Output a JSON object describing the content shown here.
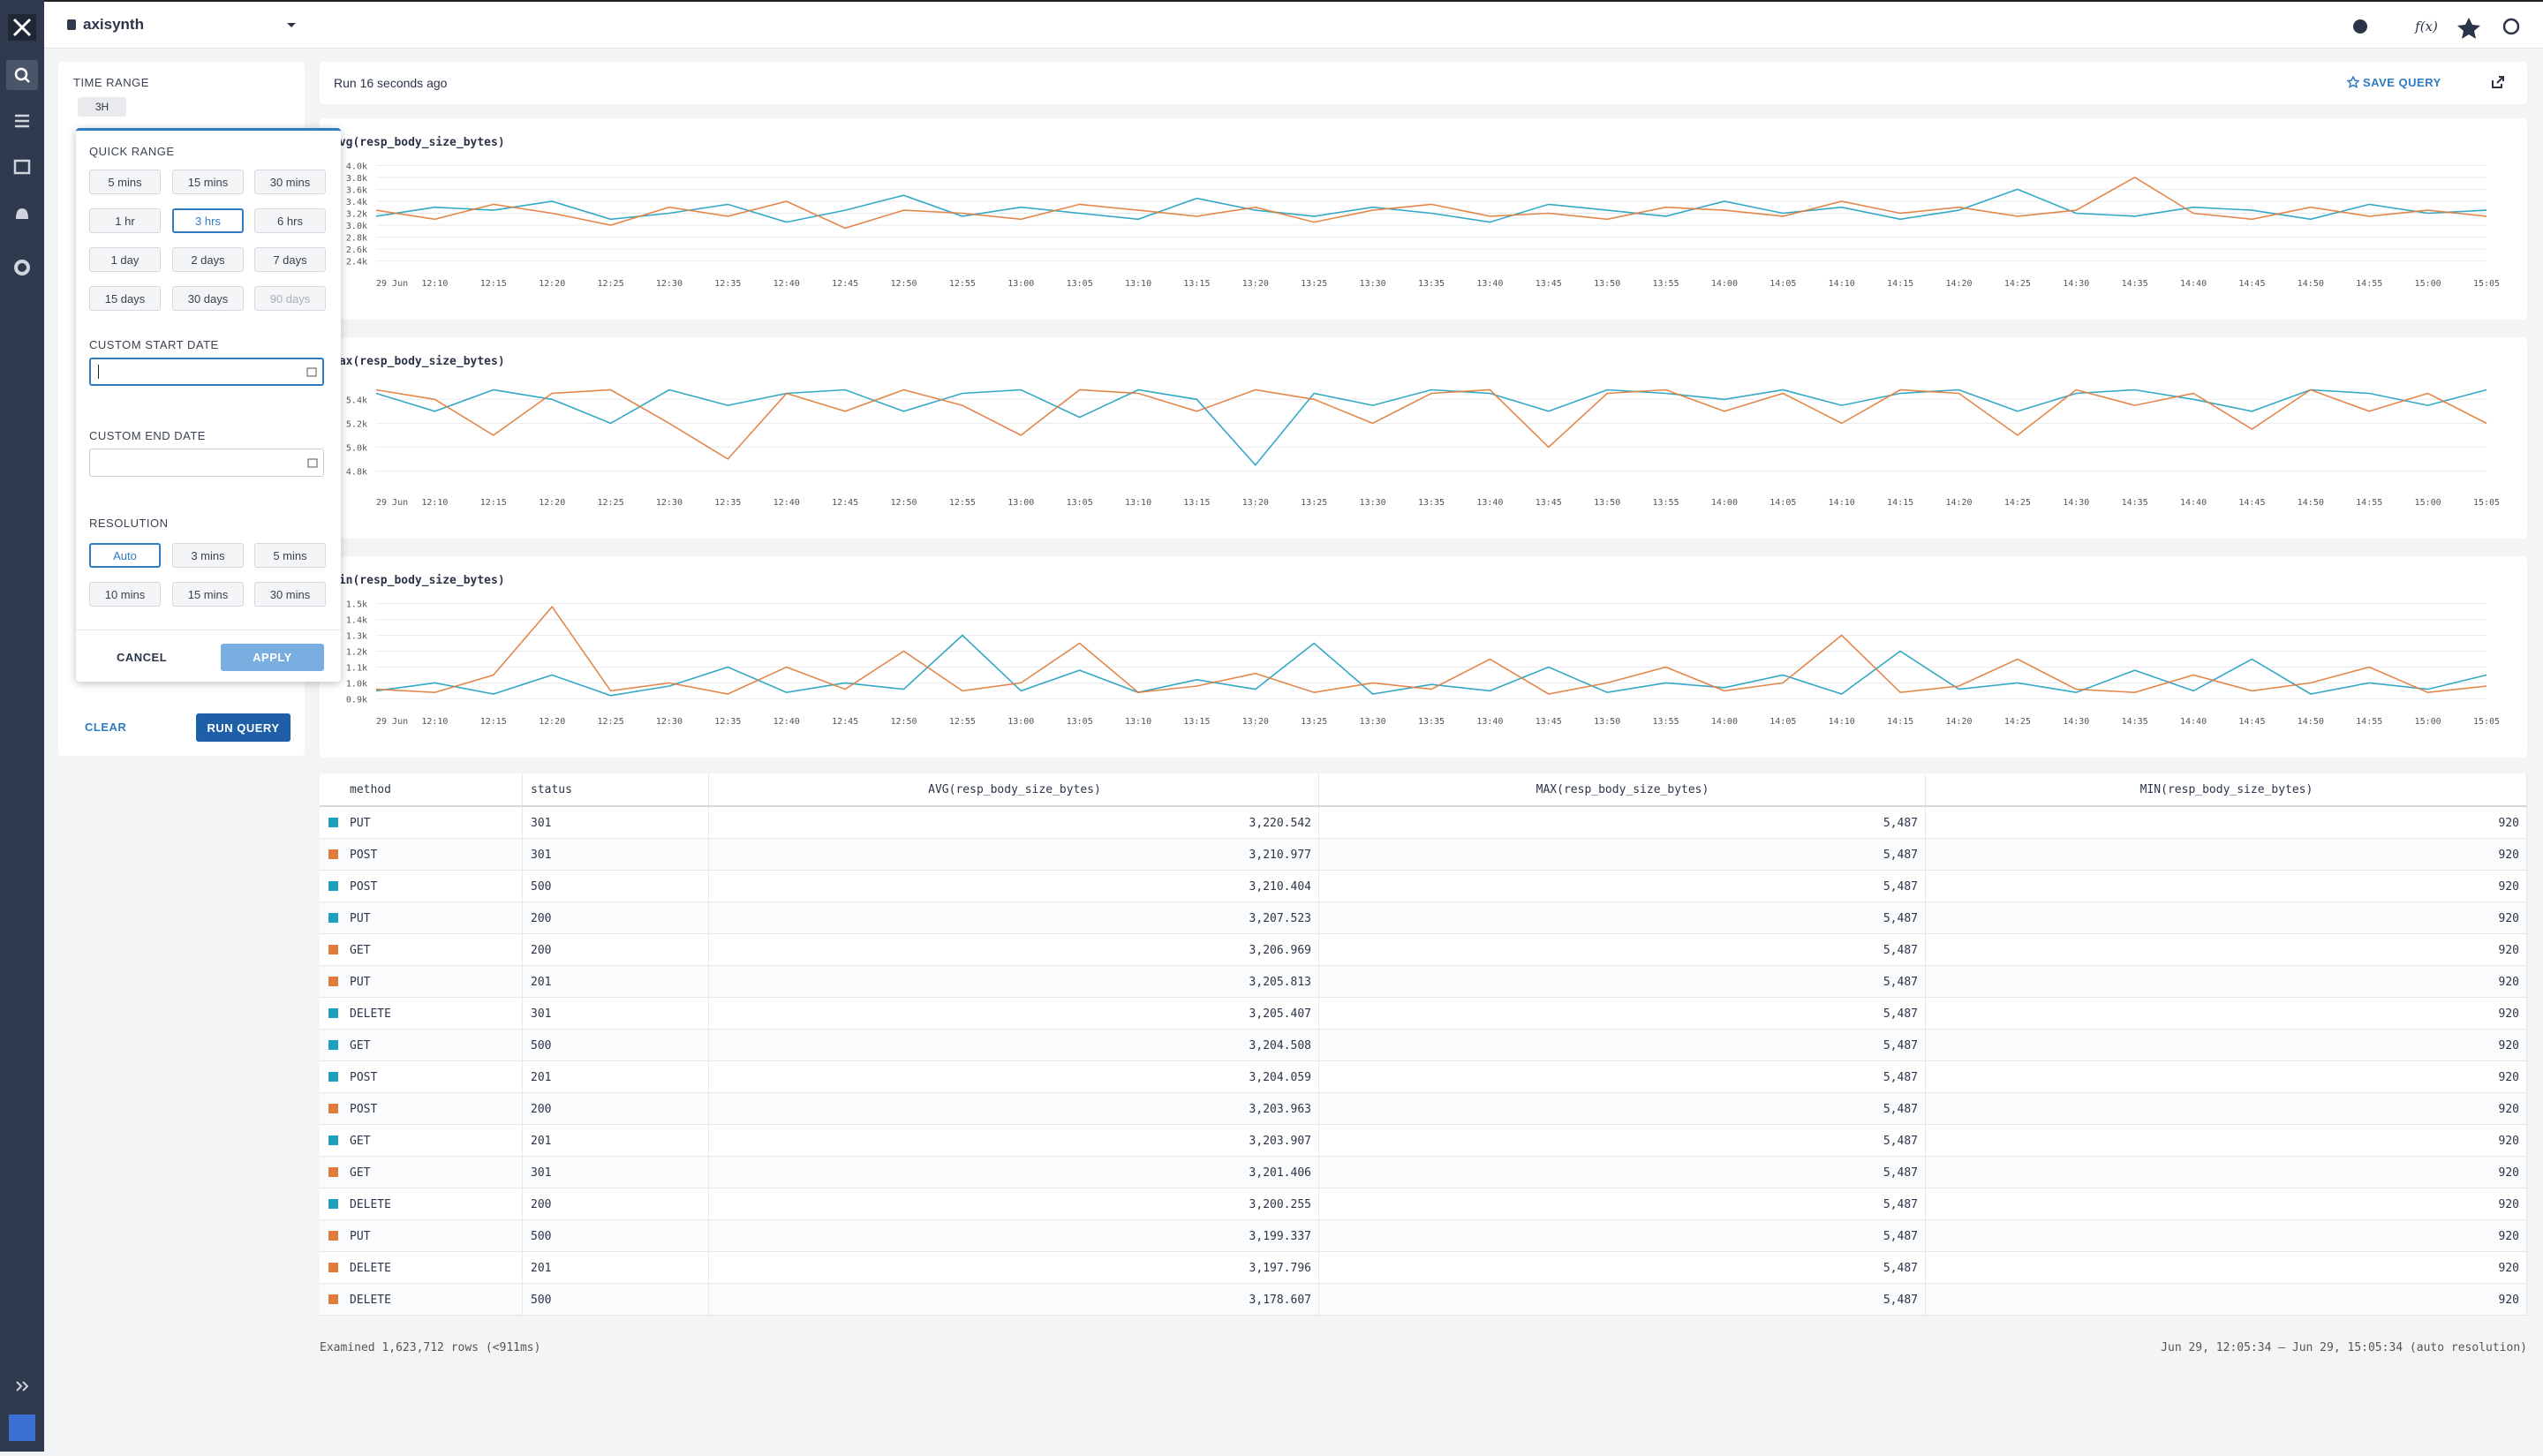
{
  "header": {
    "app": "axisynth"
  },
  "sidebar": {
    "time_range_label": "TIME RANGE",
    "time_range_value": "3H",
    "clear": "CLEAR",
    "run_query": "RUN QUERY"
  },
  "time_picker": {
    "quick_range_label": "QUICK RANGE",
    "quick_ranges": [
      "5 mins",
      "15 mins",
      "30 mins",
      "1 hr",
      "3 hrs",
      "6 hrs",
      "1 day",
      "2 days",
      "7 days",
      "15 days",
      "30 days",
      "90 days"
    ],
    "quick_selected": 4,
    "quick_disabled": 11,
    "custom_start_label": "CUSTOM START DATE",
    "custom_end_label": "CUSTOM END DATE",
    "resolution_label": "RESOLUTION",
    "resolutions": [
      "Auto",
      "3 mins",
      "5 mins",
      "10 mins",
      "15 mins",
      "30 mins"
    ],
    "resolution_selected": 0,
    "cancel": "CANCEL",
    "apply": "APPLY"
  },
  "query_bar": {
    "status": "Run 16 seconds ago",
    "save": "SAVE QUERY"
  },
  "chart_data": [
    {
      "type": "line",
      "title": "avg(resp_body_size_bytes)",
      "x": [
        "29 Jun",
        "12:10",
        "12:15",
        "12:20",
        "12:25",
        "12:30",
        "12:35",
        "12:40",
        "12:45",
        "12:50",
        "12:55",
        "13:00",
        "13:05",
        "13:10",
        "13:15",
        "13:20",
        "13:25",
        "13:30",
        "13:35",
        "13:40",
        "13:45",
        "13:50",
        "13:55",
        "14:00",
        "14:05",
        "14:10",
        "14:15",
        "14:20",
        "14:25",
        "14:30",
        "14:35",
        "14:40",
        "14:45",
        "14:50",
        "14:55",
        "15:00",
        "15:05"
      ],
      "ylim": [
        2350,
        4050
      ],
      "yticks": [
        {
          "value": 2400,
          "label": "2.4k"
        },
        {
          "value": 2600,
          "label": "2.6k"
        },
        {
          "value": 2800,
          "label": "2.8k"
        },
        {
          "value": 3000,
          "label": "3.0k"
        },
        {
          "value": 3200,
          "label": "3.2k"
        },
        {
          "value": 3400,
          "label": "3.4k"
        },
        {
          "value": 3600,
          "label": "3.6k"
        },
        {
          "value": 3800,
          "label": "3.8k"
        },
        {
          "value": 4000,
          "label": "4.0k"
        }
      ],
      "grid": true,
      "series": [
        {
          "color": "#1f9fc0",
          "values": [
            3150,
            3300,
            3250,
            3400,
            3100,
            3200,
            3350,
            3050,
            3250,
            3500,
            3150,
            3300,
            3200,
            3100,
            3450,
            3250,
            3150,
            3300,
            3200,
            3050,
            3350,
            3250,
            3150,
            3400,
            3200,
            3300,
            3100,
            3250,
            3600,
            3200,
            3150,
            3300,
            3250,
            3100,
            3350,
            3200,
            3250
          ]
        },
        {
          "color": "#e07b39",
          "values": [
            3250,
            3100,
            3350,
            3200,
            3000,
            3300,
            3150,
            3400,
            2950,
            3250,
            3200,
            3100,
            3350,
            3250,
            3150,
            3300,
            3050,
            3250,
            3350,
            3150,
            3200,
            3100,
            3300,
            3250,
            3150,
            3400,
            3200,
            3300,
            3150,
            3250,
            3800,
            3200,
            3100,
            3300,
            3150,
            3250,
            3150
          ]
        }
      ]
    },
    {
      "type": "line",
      "title": "max(resp_body_size_bytes)",
      "x": [
        "29 Jun",
        "12:10",
        "12:15",
        "12:20",
        "12:25",
        "12:30",
        "12:35",
        "12:40",
        "12:45",
        "12:50",
        "12:55",
        "13:00",
        "13:05",
        "13:10",
        "13:15",
        "13:20",
        "13:25",
        "13:30",
        "13:35",
        "13:40",
        "13:45",
        "13:50",
        "13:55",
        "14:00",
        "14:05",
        "14:10",
        "14:15",
        "14:20",
        "14:25",
        "14:30",
        "14:35",
        "14:40",
        "14:45",
        "14:50",
        "14:55",
        "15:00",
        "15:05"
      ],
      "ylim": [
        4700,
        5550
      ],
      "yticks": [
        {
          "value": 4800,
          "label": "4.8k"
        },
        {
          "value": 5000,
          "label": "5.0k"
        },
        {
          "value": 5200,
          "label": "5.2k"
        },
        {
          "value": 5400,
          "label": "5.4k"
        }
      ],
      "grid": true,
      "series": [
        {
          "color": "#1f9fc0",
          "values": [
            5450,
            5300,
            5480,
            5400,
            5200,
            5480,
            5350,
            5450,
            5480,
            5300,
            5450,
            5480,
            5250,
            5480,
            5400,
            4850,
            5450,
            5350,
            5480,
            5450,
            5300,
            5480,
            5450,
            5400,
            5480,
            5350,
            5450,
            5480,
            5300,
            5450,
            5480,
            5400,
            5300,
            5480,
            5450,
            5350,
            5480
          ]
        },
        {
          "color": "#e07b39",
          "values": [
            5480,
            5400,
            5100,
            5450,
            5480,
            5200,
            4900,
            5450,
            5300,
            5480,
            5350,
            5100,
            5480,
            5450,
            5300,
            5480,
            5400,
            5200,
            5450,
            5480,
            5000,
            5450,
            5480,
            5300,
            5450,
            5200,
            5480,
            5450,
            5100,
            5480,
            5350,
            5450,
            5150,
            5480,
            5300,
            5450,
            5200
          ]
        }
      ]
    },
    {
      "type": "line",
      "title": "min(resp_body_size_bytes)",
      "x": [
        "29 Jun",
        "12:10",
        "12:15",
        "12:20",
        "12:25",
        "12:30",
        "12:35",
        "12:40",
        "12:45",
        "12:50",
        "12:55",
        "13:00",
        "13:05",
        "13:10",
        "13:15",
        "13:20",
        "13:25",
        "13:30",
        "13:35",
        "13:40",
        "13:45",
        "13:50",
        "13:55",
        "14:00",
        "14:05",
        "14:10",
        "14:15",
        "14:20",
        "14:25",
        "14:30",
        "14:35",
        "14:40",
        "14:45",
        "14:50",
        "14:55",
        "15:00",
        "15:05"
      ],
      "ylim": [
        880,
        1520
      ],
      "yticks": [
        {
          "value": 900,
          "label": "0.9k"
        },
        {
          "value": 1000,
          "label": "1.0k"
        },
        {
          "value": 1100,
          "label": "1.1k"
        },
        {
          "value": 1200,
          "label": "1.2k"
        },
        {
          "value": 1300,
          "label": "1.3k"
        },
        {
          "value": 1400,
          "label": "1.4k"
        },
        {
          "value": 1500,
          "label": "1.5k"
        }
      ],
      "grid": true,
      "series": [
        {
          "color": "#1f9fc0",
          "values": [
            950,
            1000,
            930,
            1050,
            920,
            980,
            1100,
            940,
            1000,
            960,
            1300,
            950,
            1080,
            940,
            1020,
            960,
            1250,
            930,
            990,
            950,
            1100,
            940,
            1000,
            970,
            1050,
            930,
            1200,
            960,
            1000,
            940,
            1080,
            950,
            1150,
            930,
            1000,
            960,
            1050
          ]
        },
        {
          "color": "#e07b39",
          "values": [
            960,
            940,
            1050,
            1480,
            950,
            1000,
            930,
            1100,
            960,
            1200,
            950,
            1000,
            1250,
            940,
            980,
            1060,
            940,
            1000,
            960,
            1150,
            930,
            1000,
            1100,
            950,
            1000,
            1300,
            940,
            980,
            1150,
            960,
            940,
            1050,
            950,
            1000,
            1100,
            940,
            980
          ]
        }
      ]
    }
  ],
  "table": {
    "columns": [
      "method",
      "status",
      "AVG(resp_body_size_bytes)",
      "MAX(resp_body_size_bytes)",
      "MIN(resp_body_size_bytes)"
    ],
    "rows": [
      {
        "color": "#1f9fc0",
        "cells": [
          "PUT",
          "301",
          "3,220.542",
          "5,487",
          "920"
        ]
      },
      {
        "color": "#e07b39",
        "cells": [
          "POST",
          "301",
          "3,210.977",
          "5,487",
          "920"
        ]
      },
      {
        "color": "#1f9fc0",
        "cells": [
          "POST",
          "500",
          "3,210.404",
          "5,487",
          "920"
        ]
      },
      {
        "color": "#1f9fc0",
        "cells": [
          "PUT",
          "200",
          "3,207.523",
          "5,487",
          "920"
        ]
      },
      {
        "color": "#e07b39",
        "cells": [
          "GET",
          "200",
          "3,206.969",
          "5,487",
          "920"
        ]
      },
      {
        "color": "#e07b39",
        "cells": [
          "PUT",
          "201",
          "3,205.813",
          "5,487",
          "920"
        ]
      },
      {
        "color": "#1f9fc0",
        "cells": [
          "DELETE",
          "301",
          "3,205.407",
          "5,487",
          "920"
        ]
      },
      {
        "color": "#1f9fc0",
        "cells": [
          "GET",
          "500",
          "3,204.508",
          "5,487",
          "920"
        ]
      },
      {
        "color": "#1f9fc0",
        "cells": [
          "POST",
          "201",
          "3,204.059",
          "5,487",
          "920"
        ]
      },
      {
        "color": "#e07b39",
        "cells": [
          "POST",
          "200",
          "3,203.963",
          "5,487",
          "920"
        ]
      },
      {
        "color": "#1f9fc0",
        "cells": [
          "GET",
          "201",
          "3,203.907",
          "5,487",
          "920"
        ]
      },
      {
        "color": "#e07b39",
        "cells": [
          "GET",
          "301",
          "3,201.406",
          "5,487",
          "920"
        ]
      },
      {
        "color": "#1f9fc0",
        "cells": [
          "DELETE",
          "200",
          "3,200.255",
          "5,487",
          "920"
        ]
      },
      {
        "color": "#e07b39",
        "cells": [
          "PUT",
          "500",
          "3,199.337",
          "5,487",
          "920"
        ]
      },
      {
        "color": "#e07b39",
        "cells": [
          "DELETE",
          "201",
          "3,197.796",
          "5,487",
          "920"
        ]
      },
      {
        "color": "#e07b39",
        "cells": [
          "DELETE",
          "500",
          "3,178.607",
          "5,487",
          "920"
        ]
      }
    ]
  },
  "footer": {
    "examined": "Examined 1,623,712 rows (<911ms)",
    "range": "Jun 29, 12:05:34 – Jun 29, 15:05:34 (auto resolution)"
  }
}
